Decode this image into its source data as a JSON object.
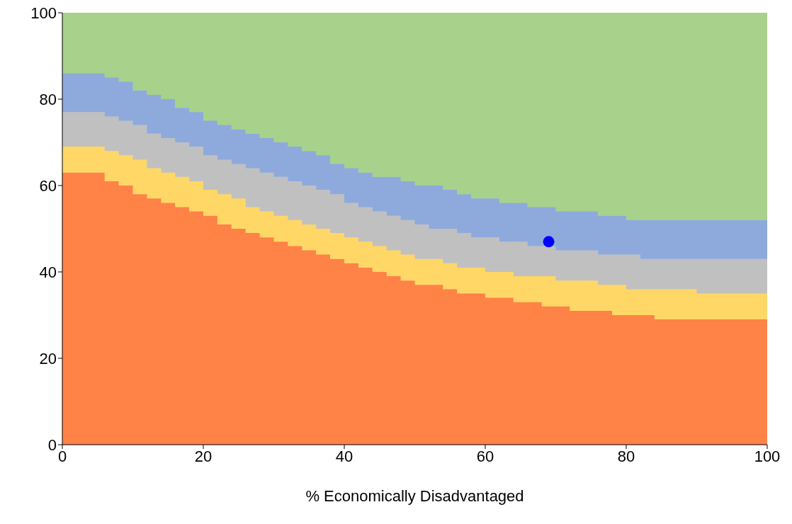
{
  "chart_data": {
    "type": "area",
    "stacked": true,
    "xlabel": "% Economically Disadvantaged",
    "x": [
      0,
      2,
      2,
      4,
      4,
      6,
      6,
      8,
      8,
      10,
      10,
      12,
      12,
      14,
      14,
      16,
      16,
      18,
      18,
      20,
      20,
      22,
      22,
      24,
      24,
      26,
      26,
      28,
      28,
      30,
      30,
      32,
      32,
      34,
      34,
      36,
      36,
      38,
      38,
      40,
      40,
      42,
      42,
      44,
      44,
      46,
      46,
      48,
      48,
      50,
      50,
      52,
      52,
      54,
      54,
      56,
      56,
      58,
      58,
      60,
      60,
      62,
      62,
      64,
      64,
      66,
      66,
      68,
      68,
      70,
      70,
      72,
      72,
      74,
      74,
      76,
      76,
      78,
      78,
      80,
      80,
      82,
      82,
      84,
      84,
      86,
      86,
      88,
      88,
      90,
      90,
      92,
      92,
      94,
      94,
      96,
      96,
      98,
      98,
      100,
      100
    ],
    "series": [
      {
        "color": "#ff8247",
        "values": [
          63,
          63,
          63,
          63,
          63,
          63,
          61,
          61,
          60,
          60,
          58,
          58,
          57,
          57,
          56,
          56,
          55,
          55,
          54,
          54,
          53,
          53,
          51,
          51,
          50,
          50,
          49,
          49,
          48,
          48,
          47,
          47,
          46,
          46,
          45,
          45,
          44,
          44,
          43,
          43,
          42,
          42,
          41,
          41,
          40,
          40,
          39,
          39,
          38,
          38,
          37,
          37,
          37,
          37,
          36,
          36,
          35,
          35,
          35,
          35,
          34,
          34,
          34,
          34,
          33,
          33,
          33,
          33,
          32,
          32,
          32,
          32,
          31,
          31,
          31,
          31,
          31,
          31,
          30,
          30,
          30,
          30,
          30,
          30,
          29,
          29,
          29,
          29,
          29,
          29,
          29,
          29,
          29,
          29,
          29,
          29,
          29,
          29,
          29,
          29,
          29
        ]
      },
      {
        "color": "#ffd766",
        "values": [
          6,
          6,
          6,
          6,
          6,
          6,
          7,
          7,
          7,
          7,
          8,
          8,
          7,
          7,
          7,
          7,
          7,
          7,
          7,
          7,
          6,
          6,
          7,
          7,
          7,
          7,
          6,
          6,
          6,
          6,
          6,
          6,
          6,
          6,
          6,
          6,
          6,
          6,
          6,
          6,
          6,
          6,
          6,
          6,
          6,
          6,
          6,
          6,
          6,
          6,
          6,
          6,
          6,
          6,
          6,
          6,
          6,
          6,
          6,
          6,
          6,
          6,
          6,
          6,
          6,
          6,
          6,
          6,
          7,
          7,
          6,
          6,
          7,
          7,
          7,
          7,
          6,
          6,
          7,
          7,
          6,
          6,
          6,
          6,
          7,
          7,
          7,
          7,
          7,
          7,
          6,
          6,
          6,
          6,
          6,
          6,
          6,
          6,
          6,
          6,
          6
        ]
      },
      {
        "color": "#c0c0c0",
        "values": [
          8,
          8,
          8,
          8,
          8,
          8,
          8,
          8,
          8,
          8,
          8,
          8,
          8,
          8,
          8,
          8,
          8,
          8,
          8,
          8,
          8,
          8,
          8,
          8,
          8,
          8,
          9,
          9,
          9,
          9,
          9,
          9,
          9,
          9,
          9,
          9,
          9,
          9,
          9,
          9,
          8,
          8,
          8,
          8,
          8,
          8,
          8,
          8,
          8,
          8,
          8,
          8,
          7,
          7,
          8,
          8,
          8,
          8,
          7,
          7,
          8,
          8,
          7,
          7,
          8,
          8,
          7,
          7,
          7,
          7,
          7,
          7,
          7,
          7,
          7,
          7,
          7,
          7,
          7,
          7,
          8,
          8,
          7,
          7,
          7,
          7,
          7,
          7,
          7,
          7,
          8,
          8,
          8,
          8,
          8,
          8,
          8,
          8,
          8,
          8,
          8
        ]
      },
      {
        "color": "#8eaadc",
        "values": [
          9,
          9,
          9,
          9,
          9,
          9,
          9,
          9,
          9,
          9,
          8,
          8,
          9,
          9,
          9,
          9,
          8,
          8,
          8,
          8,
          8,
          8,
          8,
          8,
          8,
          8,
          8,
          8,
          8,
          8,
          8,
          8,
          8,
          8,
          8,
          8,
          8,
          8,
          7,
          7,
          8,
          8,
          8,
          8,
          8,
          8,
          9,
          9,
          9,
          9,
          9,
          9,
          10,
          10,
          9,
          9,
          9,
          9,
          9,
          9,
          9,
          9,
          9,
          9,
          9,
          9,
          9,
          9,
          9,
          9,
          9,
          9,
          9,
          9,
          9,
          9,
          9,
          9,
          9,
          9,
          8,
          8,
          9,
          9,
          9,
          9,
          9,
          9,
          9,
          9,
          9,
          9,
          9,
          9,
          9,
          9,
          9,
          9,
          9,
          9,
          9
        ]
      },
      {
        "color": "#a8d18c",
        "values": [
          14,
          14,
          14,
          14,
          14,
          14,
          15,
          15,
          16,
          16,
          18,
          18,
          19,
          19,
          20,
          20,
          22,
          22,
          23,
          23,
          25,
          25,
          26,
          26,
          27,
          27,
          28,
          28,
          29,
          29,
          30,
          30,
          31,
          31,
          32,
          32,
          33,
          33,
          35,
          35,
          36,
          36,
          37,
          37,
          38,
          38,
          38,
          38,
          39,
          39,
          40,
          40,
          40,
          40,
          41,
          41,
          42,
          42,
          43,
          43,
          43,
          43,
          44,
          44,
          44,
          44,
          45,
          45,
          45,
          45,
          46,
          46,
          46,
          46,
          46,
          46,
          47,
          47,
          47,
          47,
          48,
          48,
          48,
          48,
          48,
          48,
          48,
          48,
          48,
          48,
          48,
          48,
          48,
          48,
          48,
          48,
          48,
          48,
          48,
          48,
          48
        ]
      },
      {
        "type": "scatter",
        "color": "#0000ff",
        "x": [
          69
        ],
        "values": [
          47
        ],
        "marker": "circle"
      }
    ],
    "xlim": [
      0,
      100
    ],
    "xticks": [
      0,
      20,
      40,
      60,
      80,
      100
    ],
    "ylim": [
      0,
      100
    ],
    "yticks": [
      0,
      20,
      40,
      60,
      80,
      100
    ],
    "grid": false,
    "legend": false
  }
}
